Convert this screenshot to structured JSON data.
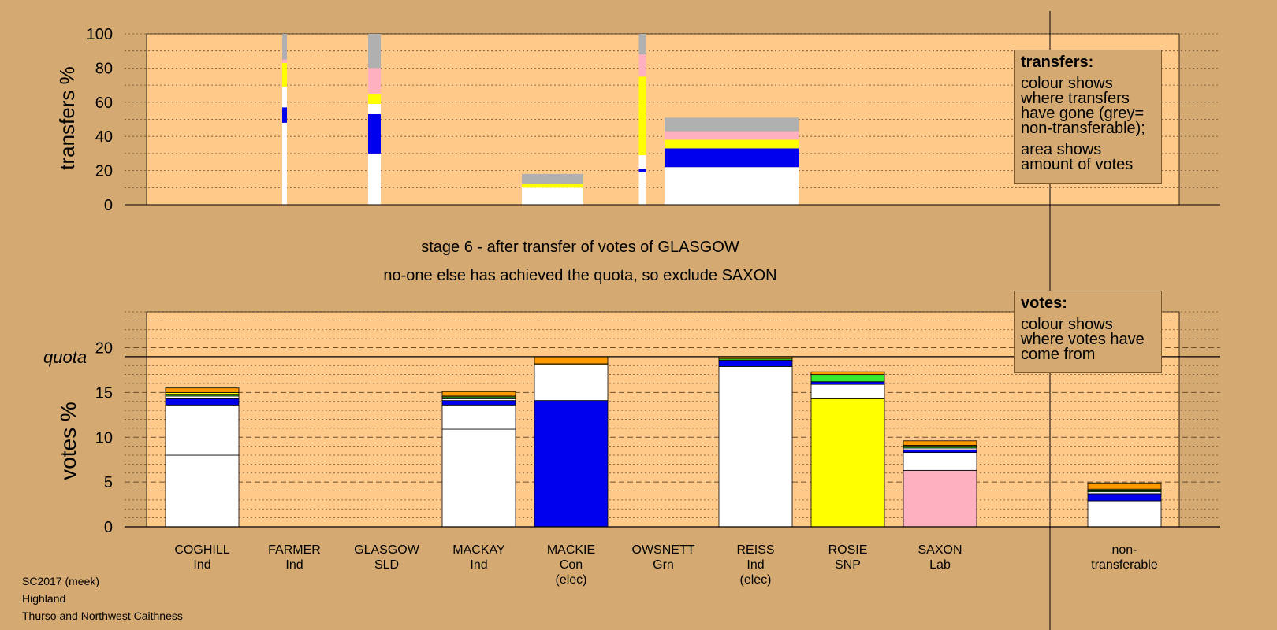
{
  "footer": [
    "SC2017 (meek)",
    "Highland",
    "Thurso and Northwest Caithness"
  ],
  "stage_text": "stage 6 - after transfer of votes of GLASGOW",
  "exclude_text": "no-one else has achieved the quota, so exclude SAXON",
  "legend_transfers": {
    "title": "transfers:",
    "p1": "colour shows where transfers have gone (grey= non-transferable);",
    "p2": "area shows amount of votes"
  },
  "legend_votes": {
    "title": "votes:",
    "p1": "colour shows where votes have come from"
  },
  "colors": {
    "background": "#d4aa72",
    "plot_bg": "#ffc98a",
    "white": "#ffffff",
    "blue": "#0000ee",
    "yellow": "#ffff00",
    "pink": "#ffb0c0",
    "grey": "#b0b0b0",
    "green": "#33ee33",
    "orange": "#ff9900"
  },
  "chart_data": [
    {
      "type": "bar",
      "name": "transfers",
      "ylabel": "transfers %",
      "ylim": [
        0,
        100
      ],
      "yticks": [
        0,
        20,
        40,
        60,
        80,
        100
      ],
      "note": "stacked bars; segments listed bottom to top in y-percent units",
      "bars": [
        {
          "x": 361,
          "width": 6,
          "segments": [
            {
              "from": 0,
              "to": 48,
              "color": "white"
            },
            {
              "from": 48,
              "to": 57,
              "color": "blue"
            },
            {
              "from": 57,
              "to": 69,
              "color": "white"
            },
            {
              "from": 69,
              "to": 83,
              "color": "yellow"
            },
            {
              "from": 83,
              "to": 85,
              "color": "pink"
            },
            {
              "from": 85,
              "to": 100,
              "color": "grey"
            }
          ]
        },
        {
          "x": 475,
          "width": 16,
          "segments": [
            {
              "from": 0,
              "to": 30,
              "color": "white"
            },
            {
              "from": 30,
              "to": 53,
              "color": "blue"
            },
            {
              "from": 53,
              "to": 59,
              "color": "white"
            },
            {
              "from": 59,
              "to": 65,
              "color": "yellow"
            },
            {
              "from": 65,
              "to": 80,
              "color": "pink"
            },
            {
              "from": 80,
              "to": 100,
              "color": "grey"
            }
          ]
        },
        {
          "x": 701,
          "width": 78,
          "segments": [
            {
              "from": 0,
              "to": 10,
              "color": "white"
            },
            {
              "from": 10,
              "to": 12,
              "color": "yellow"
            },
            {
              "from": 12,
              "to": 18,
              "color": "grey"
            }
          ]
        },
        {
          "x": 815,
          "width": 9,
          "segments": [
            {
              "from": 0,
              "to": 19,
              "color": "white"
            },
            {
              "from": 19,
              "to": 21,
              "color": "blue"
            },
            {
              "from": 21,
              "to": 29,
              "color": "white"
            },
            {
              "from": 29,
              "to": 75,
              "color": "yellow"
            },
            {
              "from": 75,
              "to": 88,
              "color": "pink"
            },
            {
              "from": 88,
              "to": 100,
              "color": "grey"
            }
          ]
        },
        {
          "x": 928,
          "width": 170,
          "segments": [
            {
              "from": 0,
              "to": 22,
              "color": "white"
            },
            {
              "from": 22,
              "to": 33,
              "color": "blue"
            },
            {
              "from": 33,
              "to": 38,
              "color": "yellow"
            },
            {
              "from": 38,
              "to": 43,
              "color": "pink"
            },
            {
              "from": 43,
              "to": 51,
              "color": "grey"
            }
          ]
        }
      ]
    },
    {
      "type": "bar",
      "name": "votes",
      "ylabel": "votes %",
      "ylim": [
        0,
        24
      ],
      "yticks": [
        0,
        5,
        10,
        15,
        20
      ],
      "quota": 19,
      "quota_label": "quota",
      "categories": [
        {
          "name": "COGHILL",
          "party": "Ind",
          "extra": ""
        },
        {
          "name": "FARMER",
          "party": "Ind",
          "extra": ""
        },
        {
          "name": "GLASGOW",
          "party": "SLD",
          "extra": ""
        },
        {
          "name": "MACKAY",
          "party": "Ind",
          "extra": ""
        },
        {
          "name": "MACKIE",
          "party": "Con",
          "extra": "(elec)"
        },
        {
          "name": "OWSNETT",
          "party": "Grn",
          "extra": ""
        },
        {
          "name": "REISS",
          "party": "Ind",
          "extra": "(elec)"
        },
        {
          "name": "ROSIE",
          "party": "SNP",
          "extra": ""
        },
        {
          "name": "SAXON",
          "party": "Lab",
          "extra": ""
        },
        {
          "name": "",
          "party": "",
          "extra": ""
        },
        {
          "name": "non-",
          "party": "transferable",
          "extra": ""
        }
      ],
      "stacks": [
        [
          {
            "v": 8.0,
            "c": "white"
          },
          {
            "v": 5.6,
            "c": "white"
          },
          {
            "v": 0.7,
            "c": "blue"
          },
          {
            "v": 0.3,
            "c": "white"
          },
          {
            "v": 0.2,
            "c": "green"
          },
          {
            "v": 0.2,
            "c": "yellow"
          },
          {
            "v": 0.5,
            "c": "orange"
          }
        ],
        [],
        [],
        [
          {
            "v": 10.9,
            "c": "white"
          },
          {
            "v": 2.7,
            "c": "white"
          },
          {
            "v": 0.5,
            "c": "blue"
          },
          {
            "v": 0.2,
            "c": "white"
          },
          {
            "v": 0.2,
            "c": "green"
          },
          {
            "v": 0.1,
            "c": "yellow"
          },
          {
            "v": 0.5,
            "c": "orange"
          }
        ],
        [
          {
            "v": 14.1,
            "c": "blue"
          },
          {
            "v": 4.0,
            "c": "white"
          },
          {
            "v": 0.1,
            "c": "yellow"
          },
          {
            "v": 0.8,
            "c": "orange"
          }
        ],
        [],
        [
          {
            "v": 17.9,
            "c": "white"
          },
          {
            "v": 0.6,
            "c": "blue"
          },
          {
            "v": 0.1,
            "c": "white"
          },
          {
            "v": 0.15,
            "c": "green"
          },
          {
            "v": 0.1,
            "c": "yellow"
          },
          {
            "v": 0.15,
            "c": "orange"
          }
        ],
        [
          {
            "v": 14.3,
            "c": "yellow"
          },
          {
            "v": 1.6,
            "c": "white"
          },
          {
            "v": 0.3,
            "c": "blue"
          },
          {
            "v": 0.8,
            "c": "green"
          },
          {
            "v": 0.3,
            "c": "orange"
          }
        ],
        [
          {
            "v": 6.3,
            "c": "pink"
          },
          {
            "v": 2.0,
            "c": "white"
          },
          {
            "v": 0.3,
            "c": "blue"
          },
          {
            "v": 0.2,
            "c": "white"
          },
          {
            "v": 0.2,
            "c": "green"
          },
          {
            "v": 0.1,
            "c": "yellow"
          },
          {
            "v": 0.5,
            "c": "orange"
          }
        ],
        [],
        [
          {
            "v": 2.9,
            "c": "white"
          },
          {
            "v": 0.8,
            "c": "blue"
          },
          {
            "v": 0.2,
            "c": "white"
          },
          {
            "v": 0.2,
            "c": "green"
          },
          {
            "v": 0.1,
            "c": "yellow"
          },
          {
            "v": 0.7,
            "c": "orange"
          }
        ]
      ]
    }
  ]
}
